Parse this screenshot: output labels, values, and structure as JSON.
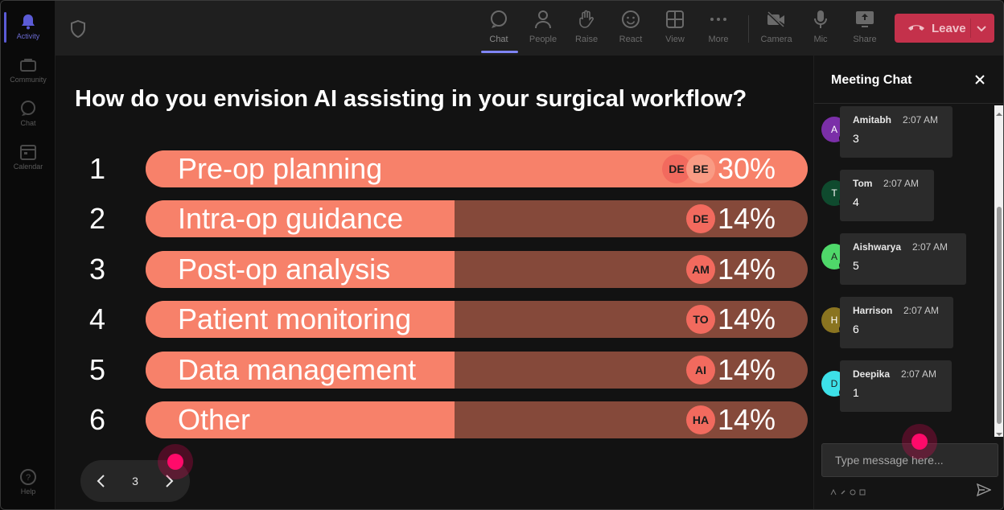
{
  "rail": {
    "items": [
      {
        "label": "Activity",
        "icon": "bell-icon",
        "active": true
      },
      {
        "label": "Community",
        "icon": "community-icon",
        "active": false
      },
      {
        "label": "Chat",
        "icon": "chat-icon",
        "active": false
      },
      {
        "label": "Calendar",
        "icon": "calendar-icon",
        "active": false
      }
    ],
    "help": "Help"
  },
  "topbar": {
    "buttons": [
      {
        "label": "Chat",
        "icon": "chat-icon",
        "active": true
      },
      {
        "label": "People",
        "icon": "people-icon",
        "active": false
      },
      {
        "label": "Raise",
        "icon": "hand-icon",
        "active": false
      },
      {
        "label": "React",
        "icon": "smile-icon",
        "active": false
      },
      {
        "label": "View",
        "icon": "grid-icon",
        "active": false
      },
      {
        "label": "More",
        "icon": "more-icon",
        "active": false
      },
      {
        "label": "Camera",
        "icon": "camera-off-icon",
        "active": false
      },
      {
        "label": "Mic",
        "icon": "mic-icon",
        "active": false
      },
      {
        "label": "Share",
        "icon": "share-icon",
        "active": false
      }
    ],
    "leave_label": "Leave",
    "leave_color": "#c4314b"
  },
  "poll": {
    "question": "How do you envision AI assisting in your surgical workflow?",
    "options": [
      {
        "num": "1",
        "label": "Pre-op planning",
        "percent": 30,
        "percent_label": "30%",
        "voters": [
          "DE",
          "BE"
        ]
      },
      {
        "num": "2",
        "label": "Intra-op guidance",
        "percent": 14,
        "percent_label": "14%",
        "voters": [
          "DE"
        ]
      },
      {
        "num": "3",
        "label": "Post-op analysis",
        "percent": 14,
        "percent_label": "14%",
        "voters": [
          "AM"
        ]
      },
      {
        "num": "4",
        "label": "Patient monitoring",
        "percent": 14,
        "percent_label": "14%",
        "voters": [
          "TO"
        ]
      },
      {
        "num": "5",
        "label": "Data management",
        "percent": 14,
        "percent_label": "14%",
        "voters": [
          "AI"
        ]
      },
      {
        "num": "6",
        "label": "Other",
        "percent": 14,
        "percent_label": "14%",
        "voters": [
          "HA"
        ]
      }
    ],
    "bar_fill_color": "#f7816a",
    "bar_track_color": "#85493a",
    "page": "3"
  },
  "chat": {
    "title": "Meeting Chat",
    "messages": [
      {
        "initial": "A",
        "name": "Amitabh",
        "time": "2:07 AM",
        "text": "3",
        "avatar_color": "#7b2fa8"
      },
      {
        "initial": "T",
        "name": "Tom",
        "time": "2:07 AM",
        "text": "4",
        "avatar_color": "#0f4a2e"
      },
      {
        "initial": "A",
        "name": "Aishwarya",
        "time": "2:07 AM",
        "text": "5",
        "avatar_color": "#4fd86a"
      },
      {
        "initial": "H",
        "name": "Harrison",
        "time": "2:07 AM",
        "text": "6",
        "avatar_color": "#8a7420"
      },
      {
        "initial": "D",
        "name": "Deepika",
        "time": "2:07 AM",
        "text": "1",
        "avatar_color": "#3de0e8"
      }
    ],
    "input_placeholder": "Type message here..."
  }
}
